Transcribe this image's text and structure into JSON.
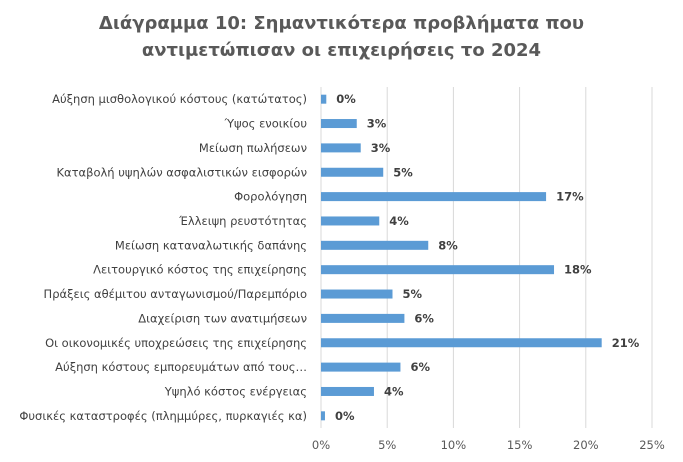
{
  "chart_data": {
    "type": "bar",
    "orientation": "horizontal",
    "title_lines": [
      "Διάγραμμα 10: Σημαντικότερα προβλήματα που",
      "αντιμετώπισαν οι επιχειρήσεις το 2024"
    ],
    "categories": [
      "Αύξηση μισθολογικού κόστους (κατώτατος)",
      "Ύψος ενοικίου",
      "Μείωση πωλήσεων",
      "Καταβολή υψηλών ασφαλιστικών εισφορών",
      "Φορολόγηση",
      "Έλλειψη ρευστότητας",
      "Μείωση καταναλωτικής δαπάνης",
      "Λειτουργικό κόστος της επιχείρησης",
      "Πράξεις αθέμιτου ανταγωνισμού/Παρεμπόριο",
      "Διαχείριση των ανατιμήσεων",
      "Οι οικονομικές υποχρεώσεις της επιχείρησης",
      "Αύξηση κόστους εμπορευμάτων από τους…",
      "Υψηλό κόστος ενέργειας",
      "Φυσικές καταστροφές (πλημμύρες, πυρκαγιές κα)"
    ],
    "values": [
      0.4,
      2.7,
      3.0,
      4.7,
      17.0,
      4.4,
      8.1,
      17.6,
      5.4,
      6.3,
      21.2,
      6.0,
      4.0,
      0.3
    ],
    "value_labels": [
      "0%",
      "3%",
      "3%",
      "5%",
      "17%",
      "4%",
      "8%",
      "18%",
      "5%",
      "6%",
      "21%",
      "6%",
      "4%",
      "0%"
    ],
    "xticks": [
      "0%",
      "5%",
      "10%",
      "15%",
      "20%",
      "25%"
    ],
    "xlim": [
      0,
      25
    ],
    "bar_color": "#5B9BD5",
    "grid": true,
    "legend": "none"
  }
}
